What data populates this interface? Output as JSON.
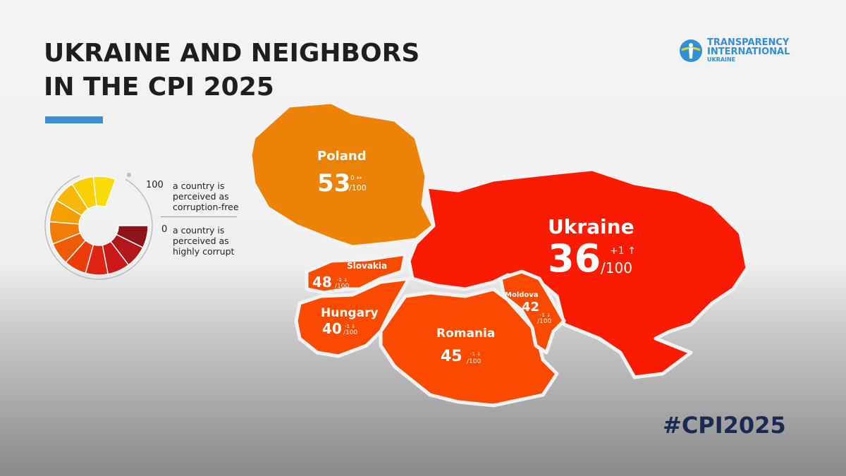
{
  "title": [
    "UKRAINE AND NEIGHBORS",
    "IN THE CPI 2025"
  ],
  "logo": {
    "line1": "TRANSPARENCY",
    "line2": "INTERNATIONAL",
    "line3": "UKRAINE"
  },
  "legend": {
    "max": "100",
    "max_text": "a country is perceived as corruption-free",
    "min": "0",
    "min_text": "a country is perceived as highly corrupt",
    "colors": [
      "#f9dc0a",
      "#fbd000",
      "#f8b80b",
      "#f5a000",
      "#f27c07",
      "#ef5a06",
      "#eb3c0a",
      "#e02412",
      "#cc1818",
      "#b1171b",
      "#8e1316"
    ]
  },
  "colors": {
    "Poland": "#ec8206",
    "Ukraine": "#fa1b02",
    "Slovakia": "#fa4a00",
    "Hungary": "#fa4a00",
    "Romania": "#fa4a00",
    "Moldova": "#fa4a00",
    "accent": "#3a8fd8"
  },
  "countries": {
    "poland": {
      "name": "Poland",
      "score": "53",
      "change": "0 ↔",
      "max": "/100"
    },
    "ukraine": {
      "name": "Ukraine",
      "score": "36",
      "change": "+1 ↑",
      "max": "/100"
    },
    "slovakia": {
      "name": "Slovakia",
      "score": "48",
      "change": "-1 ↓",
      "max": "/100"
    },
    "hungary": {
      "name": "Hungary",
      "score": "40",
      "change": "-1 ↓",
      "max": "/100"
    },
    "romania": {
      "name": "Romania",
      "score": "45",
      "change": "-1 ↓",
      "max": "/100"
    },
    "moldova": {
      "name": "Moldova",
      "score": "42",
      "change": "-1 ↓",
      "max": "/100"
    }
  },
  "hashtag": "#CPI2025"
}
